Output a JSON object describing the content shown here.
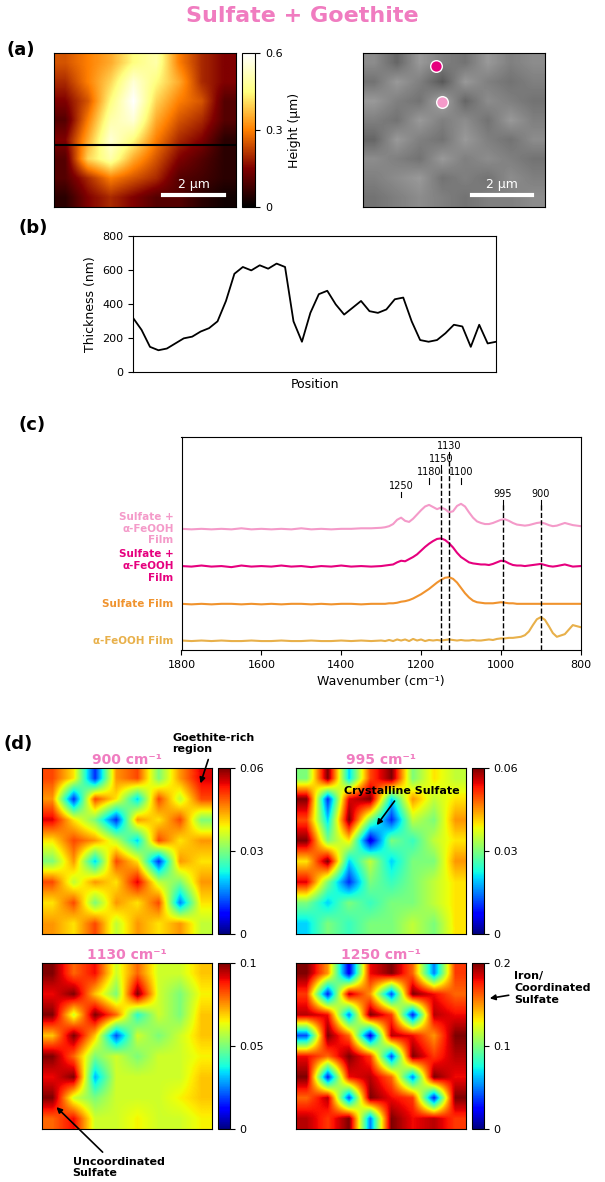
{
  "title": "Sulfate + Goethite",
  "chart_data": [
    {
      "type": "heatmap",
      "panel": "(a)",
      "tick_labels": false,
      "xlim": [
        0,
        6
      ],
      "ylim": [
        0,
        6
      ],
      "scale_bar": {
        "length": 2,
        "label": "2 µm"
      },
      "cells": [
        [
          0.25,
          0.3,
          0.35,
          0.45,
          0.5,
          0.3,
          0.2,
          0.15
        ],
        [
          0.2,
          0.3,
          0.4,
          0.55,
          0.45,
          0.35,
          0.2,
          0.15
        ],
        [
          0.15,
          0.25,
          0.45,
          0.6,
          0.4,
          0.3,
          0.25,
          0.1
        ],
        [
          0.1,
          0.3,
          0.5,
          0.55,
          0.35,
          0.25,
          0.2,
          0.1
        ],
        [
          0.15,
          0.35,
          0.55,
          0.45,
          0.3,
          0.2,
          0.15,
          0.05
        ],
        [
          0.1,
          0.4,
          0.5,
          0.35,
          0.25,
          0.15,
          0.1,
          0.05
        ],
        [
          0.1,
          0.2,
          0.3,
          0.25,
          0.2,
          0.1,
          0.08,
          0.05
        ],
        [
          0.05,
          0.15,
          0.2,
          0.15,
          0.1,
          0.1,
          0.05,
          0.02
        ]
      ],
      "colorbar": {
        "label": "Height (µm)",
        "range": [
          0,
          0.6
        ],
        "ticks": [
          0,
          0.3,
          0.6
        ]
      }
    },
    {
      "type": "heatmap",
      "tick_labels": false,
      "xlim": [
        0,
        6
      ],
      "ylim": [
        0,
        6
      ],
      "scale_bar": {
        "length": 2,
        "label": "2 µm"
      },
      "range": [
        0,
        1
      ],
      "cells": [
        [
          0.55,
          0.4,
          0.6,
          0.5,
          0.45,
          0.6,
          0.5,
          0.55
        ],
        [
          0.45,
          0.6,
          0.5,
          0.35,
          0.6,
          0.5,
          0.45,
          0.5
        ],
        [
          0.6,
          0.5,
          0.45,
          0.65,
          0.4,
          0.55,
          0.5,
          0.45
        ],
        [
          0.5,
          0.45,
          0.6,
          0.5,
          0.55,
          0.45,
          0.6,
          0.5
        ],
        [
          0.4,
          0.6,
          0.5,
          0.45,
          0.6,
          0.5,
          0.45,
          0.55
        ],
        [
          0.55,
          0.5,
          0.45,
          0.6,
          0.5,
          0.55,
          0.5,
          0.45
        ],
        [
          0.5,
          0.55,
          0.6,
          0.45,
          0.5,
          0.45,
          0.55,
          0.5
        ],
        [
          0.45,
          0.5,
          0.55,
          0.5,
          0.45,
          0.5,
          0.5,
          0.55
        ]
      ],
      "markers": [
        {
          "x": 2.4,
          "y": 5.5,
          "color": "#e6007e"
        },
        {
          "x": 2.6,
          "y": 4.1,
          "color": "#f49ac9"
        }
      ]
    },
    {
      "type": "line",
      "panel": "(b)",
      "xlabel": "Position",
      "ylabel": "Thickness (nm)",
      "color": "#000000",
      "tick_labels": "y",
      "x": [
        0,
        1,
        2,
        3,
        4,
        5,
        6,
        7,
        8,
        9,
        10,
        11,
        12,
        13,
        14,
        15,
        16,
        17,
        18,
        19,
        20,
        21,
        22,
        23,
        24,
        25,
        26,
        27,
        28,
        29,
        30,
        31,
        32,
        33,
        34,
        35,
        36,
        37,
        38,
        39,
        40,
        41,
        42,
        43
      ],
      "values": [
        320,
        250,
        150,
        130,
        140,
        170,
        200,
        210,
        240,
        260,
        300,
        420,
        580,
        620,
        600,
        630,
        610,
        640,
        620,
        300,
        180,
        350,
        460,
        480,
        400,
        340,
        380,
        420,
        360,
        350,
        370,
        430,
        440,
        300,
        190,
        180,
        190,
        230,
        280,
        270,
        150,
        280,
        170,
        180
      ],
      "xlim": [
        0,
        43
      ],
      "ylim": [
        0,
        800
      ],
      "yticks": [
        0,
        200,
        400,
        600,
        800
      ]
    },
    {
      "type": "line",
      "panel": "(c)",
      "xlabel": "Wavenumber (cm⁻¹)",
      "tick_labels": "x",
      "xlim": [
        1800,
        800
      ],
      "xticks": [
        1800,
        1600,
        1400,
        1200,
        1000,
        800
      ],
      "ylim": [
        -0.15,
        3.85
      ],
      "peak_labels": [
        1250,
        1180,
        1150,
        1130,
        1100,
        995,
        900
      ],
      "peak_lines": [
        1150,
        1130,
        995,
        900
      ],
      "x": [
        1800,
        1775,
        1750,
        1725,
        1700,
        1675,
        1650,
        1625,
        1600,
        1575,
        1550,
        1525,
        1500,
        1475,
        1450,
        1425,
        1400,
        1375,
        1350,
        1325,
        1300,
        1290,
        1280,
        1270,
        1260,
        1250,
        1240,
        1230,
        1220,
        1210,
        1200,
        1190,
        1180,
        1170,
        1160,
        1150,
        1140,
        1130,
        1120,
        1110,
        1100,
        1090,
        1080,
        1070,
        1060,
        1050,
        1040,
        1030,
        1020,
        1010,
        1000,
        990,
        980,
        970,
        960,
        950,
        940,
        930,
        920,
        910,
        900,
        890,
        880,
        870,
        860,
        840,
        820,
        800
      ],
      "series": [
        {
          "name": "Sulfate +\nα-FeOOH\nFilm",
          "color": "#f49ac9",
          "values": [
            2.13,
            2.12,
            2.13,
            2.12,
            2.13,
            2.12,
            2.14,
            2.12,
            2.13,
            2.12,
            2.13,
            2.12,
            2.14,
            2.12,
            2.13,
            2.12,
            2.13,
            2.13,
            2.14,
            2.14,
            2.15,
            2.16,
            2.18,
            2.22,
            2.3,
            2.34,
            2.28,
            2.26,
            2.32,
            2.4,
            2.48,
            2.55,
            2.58,
            2.54,
            2.5,
            2.53,
            2.5,
            2.44,
            2.46,
            2.56,
            2.6,
            2.55,
            2.44,
            2.34,
            2.27,
            2.24,
            2.22,
            2.22,
            2.24,
            2.27,
            2.3,
            2.31,
            2.28,
            2.24,
            2.21,
            2.2,
            2.19,
            2.2,
            2.22,
            2.24,
            2.25,
            2.23,
            2.2,
            2.18,
            2.19,
            2.24,
            2.2,
            2.18
          ]
        },
        {
          "name": "Sulfate +\nα-FeOOH\nFilm",
          "color": "#e6007e",
          "values": [
            1.43,
            1.42,
            1.44,
            1.42,
            1.43,
            1.41,
            1.44,
            1.42,
            1.43,
            1.42,
            1.44,
            1.42,
            1.43,
            1.41,
            1.43,
            1.42,
            1.44,
            1.42,
            1.43,
            1.42,
            1.43,
            1.44,
            1.45,
            1.46,
            1.5,
            1.53,
            1.52,
            1.56,
            1.6,
            1.65,
            1.72,
            1.79,
            1.85,
            1.9,
            1.94,
            1.95,
            1.92,
            1.86,
            1.78,
            1.68,
            1.6,
            1.55,
            1.5,
            1.48,
            1.47,
            1.46,
            1.46,
            1.45,
            1.47,
            1.5,
            1.53,
            1.52,
            1.48,
            1.45,
            1.44,
            1.44,
            1.43,
            1.44,
            1.45,
            1.46,
            1.47,
            1.45,
            1.43,
            1.42,
            1.43,
            1.46,
            1.42,
            1.43
          ]
        },
        {
          "name": "Sulfate Film",
          "color": "#f0932e",
          "values": [
            0.72,
            0.71,
            0.72,
            0.71,
            0.72,
            0.72,
            0.71,
            0.72,
            0.71,
            0.72,
            0.71,
            0.72,
            0.72,
            0.71,
            0.72,
            0.71,
            0.72,
            0.72,
            0.71,
            0.72,
            0.72,
            0.72,
            0.73,
            0.73,
            0.74,
            0.76,
            0.77,
            0.79,
            0.82,
            0.86,
            0.9,
            0.95,
            1.0,
            1.06,
            1.12,
            1.17,
            1.21,
            1.22,
            1.19,
            1.12,
            1.02,
            0.92,
            0.84,
            0.78,
            0.75,
            0.74,
            0.73,
            0.73,
            0.73,
            0.74,
            0.75,
            0.74,
            0.73,
            0.73,
            0.72,
            0.72,
            0.72,
            0.72,
            0.72,
            0.72,
            0.72,
            0.72,
            0.72,
            0.72,
            0.72,
            0.72,
            0.72,
            0.72
          ]
        },
        {
          "name": "α-FeOOH Film",
          "color": "#e8b04a",
          "values": [
            0.03,
            0.02,
            0.03,
            0.02,
            0.03,
            0.02,
            0.02,
            0.03,
            0.02,
            0.02,
            0.03,
            0.02,
            0.02,
            0.03,
            0.02,
            0.02,
            0.03,
            0.02,
            0.03,
            0.02,
            0.03,
            0.02,
            0.04,
            0.02,
            0.05,
            0.03,
            0.05,
            0.02,
            0.06,
            0.03,
            0.05,
            0.02,
            0.04,
            0.03,
            0.04,
            0.03,
            0.04,
            0.05,
            0.04,
            0.03,
            0.04,
            0.03,
            0.03,
            0.04,
            0.03,
            0.03,
            0.04,
            0.05,
            0.04,
            0.06,
            0.07,
            0.07,
            0.08,
            0.08,
            0.09,
            0.1,
            0.13,
            0.2,
            0.32,
            0.43,
            0.47,
            0.42,
            0.3,
            0.17,
            0.1,
            0.15,
            0.32,
            0.28
          ]
        }
      ]
    },
    {
      "type": "heatmap",
      "panel": "(d)",
      "title": "900 cm⁻¹",
      "tick_labels": false,
      "annotation": "Goethite-rich\nregion",
      "cells": [
        [
          0.05,
          0.04,
          0.01,
          0.045,
          0.05,
          0.03,
          0.045,
          0.055
        ],
        [
          0.045,
          0.01,
          0.05,
          0.04,
          0.02,
          0.05,
          0.035,
          0.05
        ],
        [
          0.055,
          0.04,
          0.03,
          0.01,
          0.045,
          0.04,
          0.05,
          0.03
        ],
        [
          0.04,
          0.05,
          0.045,
          0.035,
          0.02,
          0.05,
          0.04,
          0.045
        ],
        [
          0.03,
          0.045,
          0.02,
          0.05,
          0.04,
          0.01,
          0.045,
          0.04
        ],
        [
          0.05,
          0.035,
          0.045,
          0.04,
          0.055,
          0.035,
          0.03,
          0.045
        ],
        [
          0.04,
          0.05,
          0.03,
          0.045,
          0.04,
          0.05,
          0.015,
          0.04
        ],
        [
          0.045,
          0.04,
          0.05,
          0.035,
          0.045,
          0.04,
          0.045,
          0.035
        ]
      ],
      "colorbar": {
        "range": [
          0,
          0.06
        ],
        "ticks": [
          0,
          0.03,
          0.06
        ]
      }
    },
    {
      "type": "heatmap",
      "title": "995 cm⁻¹",
      "tick_labels": false,
      "annotation": "Crystalline Sulfate",
      "cells": [
        [
          0.03,
          0.06,
          0.02,
          0.05,
          0.06,
          0.03,
          0.04,
          0.035
        ],
        [
          0.06,
          0.01,
          0.055,
          0.06,
          0.02,
          0.045,
          0.035,
          0.04
        ],
        [
          0.05,
          0.02,
          0.06,
          0.03,
          0.01,
          0.035,
          0.03,
          0.045
        ],
        [
          0.06,
          0.03,
          0.04,
          0.005,
          0.03,
          0.025,
          0.035,
          0.04
        ],
        [
          0.04,
          0.06,
          0.02,
          0.035,
          0.02,
          0.03,
          0.03,
          0.045
        ],
        [
          0.055,
          0.03,
          0.01,
          0.03,
          0.025,
          0.03,
          0.035,
          0.04
        ],
        [
          0.03,
          0.02,
          0.03,
          0.025,
          0.03,
          0.03,
          0.035,
          0.04
        ],
        [
          0.02,
          0.03,
          0.025,
          0.03,
          0.03,
          0.035,
          0.03,
          0.04
        ]
      ],
      "colorbar": {
        "range": [
          0,
          0.06
        ],
        "ticks": [
          0,
          0.03,
          0.06
        ]
      }
    },
    {
      "type": "heatmap",
      "title": "1130 cm⁻¹",
      "tick_labels": false,
      "annotation": "Uncoordinated\nSulfate",
      "cells": [
        [
          0.1,
          0.08,
          0.09,
          0.06,
          0.08,
          0.06,
          0.06,
          0.07
        ],
        [
          0.09,
          0.1,
          0.07,
          0.05,
          0.1,
          0.06,
          0.05,
          0.065
        ],
        [
          0.1,
          0.06,
          0.1,
          0.08,
          0.04,
          0.06,
          0.05,
          0.07
        ],
        [
          0.07,
          0.1,
          0.07,
          0.02,
          0.06,
          0.05,
          0.06,
          0.07
        ],
        [
          0.1,
          0.08,
          0.05,
          0.06,
          0.05,
          0.06,
          0.06,
          0.065
        ],
        [
          0.09,
          0.1,
          0.03,
          0.06,
          0.06,
          0.06,
          0.06,
          0.07
        ],
        [
          0.1,
          0.06,
          0.05,
          0.06,
          0.06,
          0.06,
          0.065,
          0.07
        ],
        [
          0.08,
          0.09,
          0.06,
          0.06,
          0.065,
          0.06,
          0.06,
          0.065
        ]
      ],
      "colorbar": {
        "range": [
          0,
          0.1
        ],
        "ticks": [
          0,
          0.05,
          0.1
        ]
      }
    },
    {
      "type": "heatmap",
      "title": "1250 cm⁻¹",
      "tick_labels": false,
      "annotation": "Iron/\nCoordinated\nSulfate",
      "cells": [
        [
          0.2,
          0.15,
          0.02,
          0.18,
          0.2,
          0.16,
          0.05,
          0.17
        ],
        [
          0.17,
          0.03,
          0.19,
          0.15,
          0.04,
          0.2,
          0.18,
          0.16
        ],
        [
          0.19,
          0.18,
          0.05,
          0.2,
          0.17,
          0.03,
          0.19,
          0.18
        ],
        [
          0.04,
          0.2,
          0.16,
          0.02,
          0.19,
          0.18,
          0.15,
          0.2
        ],
        [
          0.18,
          0.16,
          0.2,
          0.17,
          0.04,
          0.2,
          0.17,
          0.19
        ],
        [
          0.2,
          0.03,
          0.18,
          0.19,
          0.16,
          0.05,
          0.2,
          0.18
        ],
        [
          0.16,
          0.19,
          0.04,
          0.2,
          0.18,
          0.17,
          0.03,
          0.2
        ],
        [
          0.19,
          0.17,
          0.2,
          0.05,
          0.2,
          0.18,
          0.19,
          0.17
        ]
      ],
      "colorbar": {
        "range": [
          0,
          0.2
        ],
        "ticks": [
          0,
          0.1,
          0.2
        ]
      }
    }
  ]
}
